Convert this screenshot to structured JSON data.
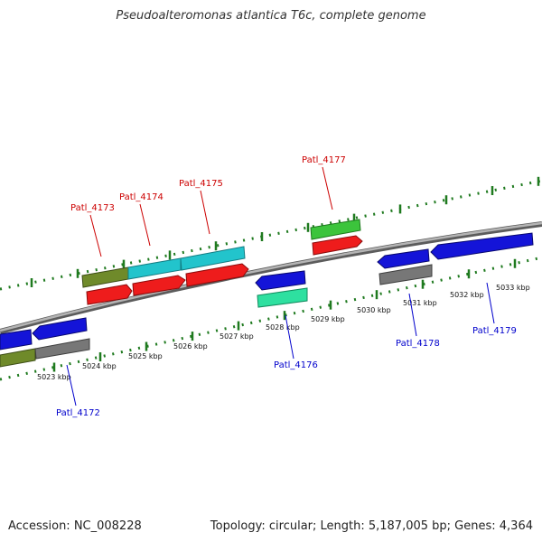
{
  "title": "Pseudoalteromonas atlantica T6c, complete genome",
  "footer": {
    "accession": "Accession: NC_008228",
    "summary": "Topology: circular; Length: 5,187,005 bp; Genes: 4,364"
  },
  "colors": {
    "background": "#ffffff",
    "backbone": "#8c8c8c",
    "tick": "#1f7a1f",
    "label_forward": "#cc0000",
    "label_reverse": "#0000cc",
    "gene_red": "#ee1c1c",
    "gene_cyan": "#22c4cc",
    "gene_olive": "#6f8a2a",
    "gene_green": "#3cc43c",
    "gene_blue": "#1414d8",
    "gene_gray": "#777777",
    "gene_mint": "#2ee0a0"
  },
  "scale_labels": [
    "5023 kbp",
    "5024 kbp",
    "5025 kbp",
    "5026 kbp",
    "5027 kbp",
    "5028 kbp",
    "5029 kbp",
    "5030 kbp",
    "5031 kbp",
    "5032 kbp",
    "5033 kbp"
  ],
  "gene_labels": [
    {
      "id": "Patl_4173",
      "strand": "forward"
    },
    {
      "id": "Patl_4174",
      "strand": "forward"
    },
    {
      "id": "Patl_4175",
      "strand": "forward"
    },
    {
      "id": "Patl_4177",
      "strand": "forward"
    },
    {
      "id": "Patl_4172",
      "strand": "reverse"
    },
    {
      "id": "Patl_4176",
      "strand": "reverse"
    },
    {
      "id": "Patl_4178",
      "strand": "reverse"
    },
    {
      "id": "Patl_4179",
      "strand": "reverse"
    }
  ]
}
